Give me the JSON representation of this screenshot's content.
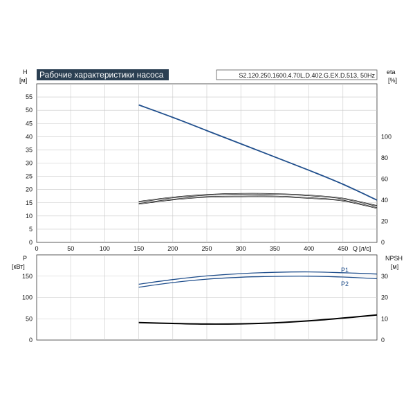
{
  "chart_data": [
    {
      "type": "line",
      "panel": "top",
      "title": "Рабочие характеристики насоса",
      "model": "S2.120.250.1600.4.70L.D.402.G.EX.D.513, 50Hz",
      "xlabel": "Q [л/с]",
      "x_unit_name": "Q",
      "x_unit": "[л/с]",
      "xlim": [
        0,
        500
      ],
      "x_ticks": [
        0,
        50,
        100,
        150,
        200,
        250,
        300,
        350,
        400,
        450
      ],
      "ylabel_left_name": "H",
      "ylabel_left_unit": "[м]",
      "ylim_left": [
        0,
        60
      ],
      "y_ticks_left": [
        0,
        5,
        10,
        15,
        20,
        25,
        30,
        35,
        40,
        45,
        50,
        55
      ],
      "ylabel_right_name": "eta",
      "ylabel_right_unit": "[%]",
      "ylim_right": [
        0,
        150
      ],
      "y_ticks_right": [
        0,
        20,
        40,
        60,
        80,
        100
      ],
      "grid": true,
      "series": [
        {
          "axis": "left",
          "color": "#1f4e8c",
          "x": [
            150,
            200,
            250,
            300,
            350,
            400,
            450,
            500
          ],
          "y": [
            52,
            47.3,
            42.3,
            37.3,
            32.3,
            27.3,
            22,
            16
          ]
        },
        {
          "axis": "right",
          "color": "#000000",
          "x": [
            150,
            200,
            250,
            300,
            350,
            400,
            450,
            500
          ],
          "y": [
            38.5,
            42.5,
            45,
            46,
            45.8,
            44.5,
            41.5,
            34.5
          ]
        },
        {
          "axis": "right",
          "color": "#000000",
          "x": [
            150,
            200,
            250,
            300,
            350,
            400,
            450,
            500
          ],
          "y": [
            36.5,
            40.5,
            43,
            43.5,
            43.5,
            42,
            39.5,
            32.5
          ]
        }
      ]
    },
    {
      "type": "line",
      "panel": "bottom",
      "xlim": [
        0,
        500
      ],
      "x_ticks": [
        0,
        50,
        100,
        150,
        200,
        250,
        300,
        350,
        400,
        450
      ],
      "ylabel_left_name": "P",
      "ylabel_left_unit": "[кВт]",
      "ylim_left": [
        0,
        200
      ],
      "y_ticks_left": [
        0,
        50,
        100,
        150
      ],
      "ylabel_right_name": "NPSH",
      "ylabel_right_unit": "[м]",
      "ylim_right": [
        0,
        40
      ],
      "y_ticks_right": [
        0,
        10,
        20,
        30
      ],
      "grid": true,
      "series": [
        {
          "name": "P1",
          "axis": "left",
          "color": "#1f4e8c",
          "x": [
            150,
            200,
            250,
            300,
            350,
            400,
            450,
            500
          ],
          "y": [
            131,
            142,
            150.5,
            156,
            159,
            160,
            158,
            155
          ]
        },
        {
          "name": "P2",
          "axis": "left",
          "color": "#1f4e8c",
          "x": [
            150,
            200,
            250,
            300,
            350,
            400,
            450,
            500
          ],
          "y": [
            124,
            135,
            143,
            147.5,
            149.5,
            150,
            148,
            144
          ]
        },
        {
          "axis": "right",
          "color": "#000000",
          "x": [
            150,
            200,
            250,
            300,
            350,
            400,
            450,
            500
          ],
          "y": [
            8.2,
            7.8,
            7.5,
            7.6,
            8.1,
            9.0,
            10.3,
            11.8
          ]
        }
      ]
    }
  ]
}
